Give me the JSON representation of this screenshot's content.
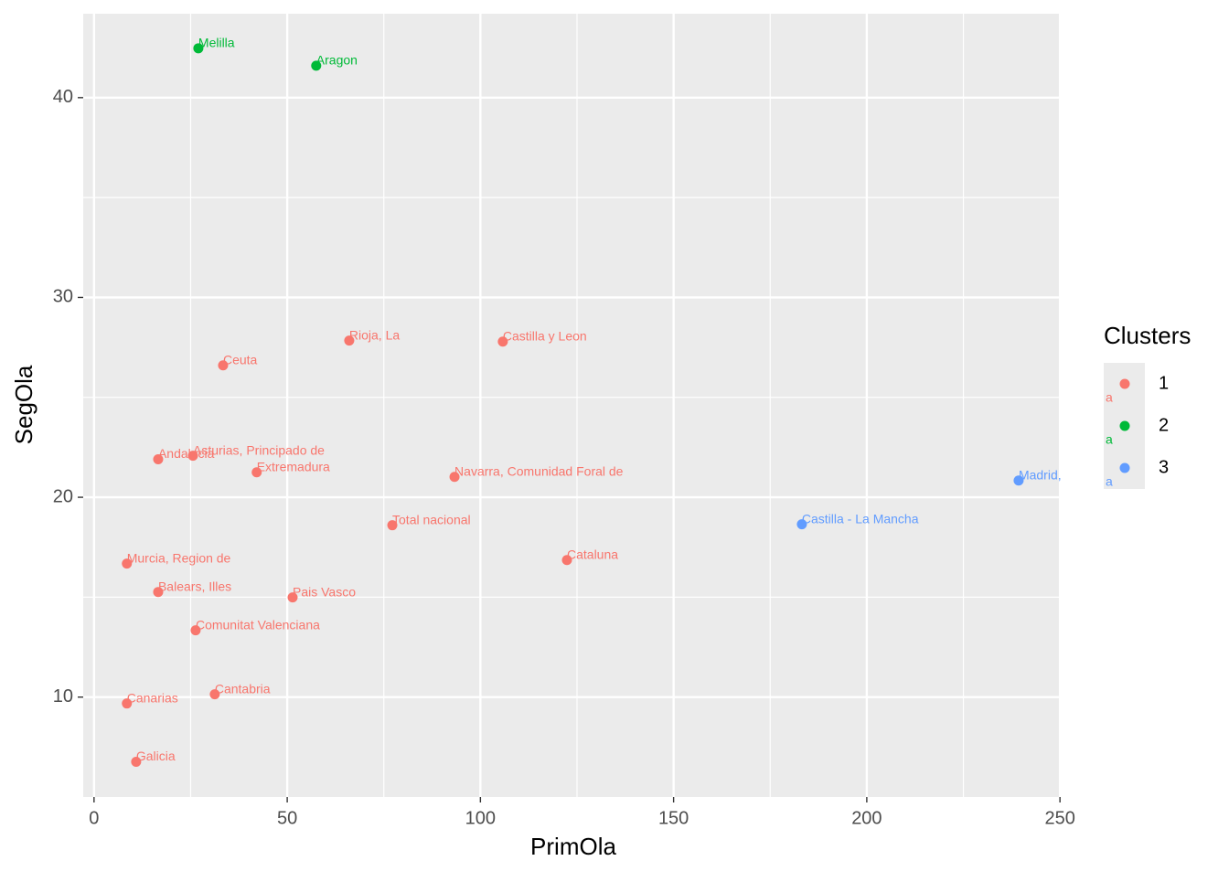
{
  "chart_data": {
    "type": "scatter",
    "x_label": "PrimOla",
    "y_label": "SegOla",
    "xlim": [
      -2.8,
      250.2
    ],
    "ylim": [
      5.0,
      44.2
    ],
    "xticks": [
      0,
      50,
      100,
      150,
      200,
      250
    ],
    "yticks": [
      10,
      20,
      30,
      40
    ],
    "minor_xticks": [
      25,
      75,
      125,
      175,
      225
    ],
    "minor_yticks": [
      15,
      25,
      35
    ],
    "grid": true,
    "legend_title": "Clusters",
    "legend_glyph": "a",
    "legend_position": "right",
    "series": [
      {
        "name": "1",
        "color": "#F8766D",
        "x": [
          66.05,
          105.8,
          33.4,
          16.6,
          25.6,
          42.1,
          93.3,
          77.2,
          8.5,
          122.4,
          16.6,
          51.4,
          26.3,
          31.25,
          8.5,
          10.9
        ],
        "values": [
          27.84,
          27.79,
          26.6,
          21.9,
          22.08,
          21.25,
          21.02,
          18.6,
          16.68,
          16.86,
          15.26,
          14.99,
          13.34,
          10.14,
          9.68,
          6.76
        ],
        "labels": [
          "Rioja, La",
          "Castilla y Leon",
          "Ceuta",
          "Andalucia",
          "Asturias, Principado de",
          "Extremadura",
          "Navarra, Comunidad Foral de",
          "Total nacional",
          "Murcia, Region de",
          "Cataluna",
          "Balears, Illes",
          "Pais Vasco",
          "Comunitat Valenciana",
          "Cantabria",
          "Canarias",
          "Galicia"
        ]
      },
      {
        "name": "2",
        "color": "#00BA38",
        "x": [
          27.0,
          57.5
        ],
        "values": [
          42.47,
          41.6
        ],
        "labels": [
          "Melilla",
          "Aragon"
        ]
      },
      {
        "name": "3",
        "color": "#619CFF",
        "x": [
          239.3,
          183.2
        ],
        "values": [
          20.84,
          18.65
        ],
        "labels": [
          "Madrid,",
          "Castilla - La Mancha"
        ]
      }
    ]
  }
}
